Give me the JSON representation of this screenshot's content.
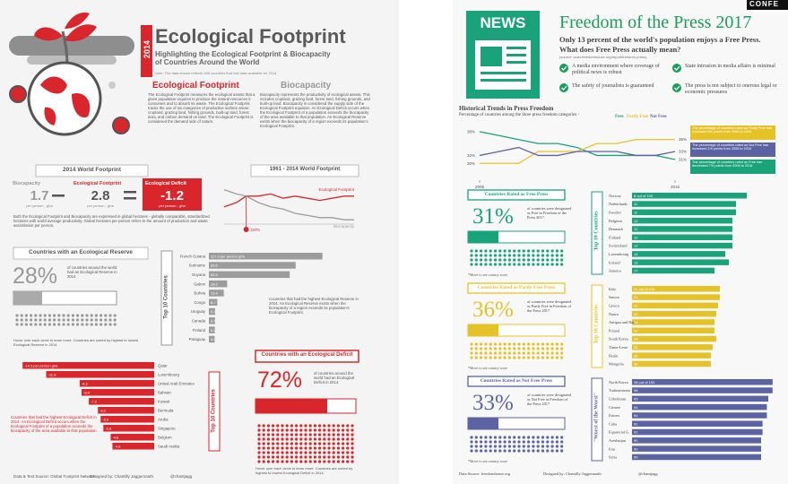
{
  "badge": "CONFE",
  "footprint": {
    "year": "2014",
    "title": "Ecological Footprint",
    "subtitle": "Highlighting the Ecological Footprint & Biocapacity of Countries Around the World",
    "note": "Note: The data shown reflects 188 countries that had data available for 2014.",
    "ef_heading": "Ecological Footprint",
    "ef_text": "The Ecological Footprint measures the ecological assets that a given population requires to produce the natural resources it consumes and to absorb its waste. The Ecological Footprint tracks the use of six categories of productive surface areas: cropland, grazing land, fishing grounds, built-up land, forest area, and carbon demand on land. The Ecological Footprint is considered the demand side of nature.",
    "bio_heading": "Biocapacity",
    "bio_text": "Biocapacity represents the productivity of ecological assets. This includes cropland, grazing land, forest land, fishing grounds, and built-up land. Biocapacity is considered the supply side of the Ecological Footprint equation. An Ecological Deficit occurs when the Ecological Footprint of a population exceeds the biocapacity of the area available to that population. An Ecological Reserve exists when the biocapacity of a region exceeds its population's Ecological Footprint.",
    "world_heading": "2014 World Footprint",
    "world": [
      {
        "label": "Biocapacity",
        "value": "1.7",
        "unit": "per person - gha"
      },
      {
        "label": "Ecological Footprint",
        "value": "2.8",
        "unit": "per person - gha"
      },
      {
        "label": "Ecological Deficit",
        "value": "-1.2",
        "unit": "per person - gha"
      }
    ],
    "world_text": "Both the Ecological Footprint and Biocapacity are expressed in global hectares - globally comparable, standardized hectares with world average productivity. Global hectares per person refers to the amount of production and waste assimilation per person.",
    "trend_heading": "1961 - 2014 World Footprint",
    "reserve_heading": "Countries with an Ecological Reserve",
    "reserve_pct": "28%",
    "reserve_text": "of countries around the world had an Ecological Reserve in 2014",
    "reserve_note": "Hover over each circle to learn more. Countries are sorted by highest to lowest Ecological Reserve in 2014.",
    "reserve_side": "Countries that had the highest Ecological Reserve in 2014. An Ecological Reserve exists when the biocapacity of a region exceeds its population's Ecological Footprint.",
    "top10": "Top 10 Countries",
    "deficit_heading": "Countries with an Ecological Deficit",
    "deficit_pct": "72%",
    "deficit_text": "of countries around the world had an Ecological Deficit in 2014",
    "deficit_note": "Hover over each circle to learn more. Countries are sorted by highest to lowest Ecological Deficit in 2014.",
    "deficit_side": "Countries that had the highest Ecological Deficit in 2014. An Ecological Deficit occurs when the Ecological Footprint of a population exceeds the biocapacity of the area available to that population.",
    "footer": [
      "Data & Text Source: Global Footprint Network",
      "Designed by: Chantilly Jaggernauth",
      "@chantjagg"
    ]
  },
  "press": {
    "icon": "NEWS",
    "title": "Freedom of the Press 2017",
    "subtitle": "Only 13 percent of the world's population enjoys a Free Press.",
    "question": "What does Free Press actually mean?",
    "source": "(source: www.freedomhouse.org/report/freedom-press)",
    "checks": [
      "A media environment where coverage of political news is robust",
      "State intrusion in media affairs is minimal",
      "The safety of journalists is guaranteed",
      "The press is not subject to onerous legal or economic pressures"
    ],
    "trend_title": "Historical Trends in Press Freedom",
    "trend_subtitle": "Percentage of countries among the three press freedom categories -",
    "trend_notes": [
      "The percentage of countries rated as Partly Free has increased 6% points from 2006 to 2016",
      "The percentage of countries rated as Not Free has increased 1% points from 2006 to 2016",
      "The percentage of countries rated as Free has decreased 7% points from 2006 to 2016"
    ],
    "sections": [
      {
        "heading": "Countries Rated as Free Press",
        "pct": "31%",
        "text": "of countries were designated as Free in Freedom of the Press 2017",
        "note": "*Move to see country score",
        "side": "Top 10 Countries"
      },
      {
        "heading": "Countries Rated as Partly Free Press",
        "pct": "36%",
        "text": "of countries were designated as Partly Free in Freedom of the Press 2017",
        "note": "*Move to see country score",
        "side": "Top 10 Countries"
      },
      {
        "heading": "Countries Rated as Not Free Press",
        "pct": "33%",
        "text": "of countries were designated as Not Free in Freedom of the Press 2017",
        "note": "*Move to see country score",
        "side": "\"Worst of the Worst\""
      }
    ],
    "footer": [
      "Data Source: freedomhouse.org",
      "Designed by: Chantilly Jaggernauth",
      "@chantjagg"
    ]
  },
  "chart_data": [
    {
      "type": "bar",
      "orientation": "horizontal",
      "color": "#9c9c9c",
      "categories": [
        "French Guiana",
        "Suriname",
        "Guyana",
        "Gabon",
        "Bolivia",
        "Congo",
        "Uruguay",
        "Canada",
        "Finland",
        "Paraguay"
      ],
      "values": [
        117.3,
        89.6,
        83.5,
        18.9,
        15.4,
        8.7,
        6.5,
        6.4,
        6.2,
        6.0
      ],
      "value_labels": [
        "117.3 per person gha",
        "89.6",
        "83.5",
        "18.9",
        "15.4",
        "8.7",
        "6.5",
        "6.4",
        "6.2",
        "6.0"
      ],
      "xlim": [
        0,
        125
      ]
    },
    {
      "type": "bar",
      "orientation": "horizontal",
      "color": "#d9262c",
      "categories": [
        "Qatar",
        "Luxembourg",
        "United Arab Emirates",
        "Bahrain",
        "Kuwait",
        "Bermuda",
        "Aruba",
        "Singapore",
        "Belgium",
        "Saudi Arabia"
      ],
      "values": [
        -14.5,
        -11.9,
        -8.2,
        -8.0,
        -7.2,
        -6.2,
        -5.9,
        -5.6,
        -4.8,
        -4.6
      ],
      "value_labels": [
        "-14.5 per person gha",
        "-11.9",
        "-8.2",
        "-8.0",
        "-7.2",
        "-6.2",
        "-5.9",
        "-5.6",
        "-4.8",
        "-4.6"
      ],
      "xlim": [
        -16,
        0
      ]
    },
    {
      "type": "line",
      "x": [
        1961,
        1966,
        1970,
        1975,
        1980,
        1985,
        1990,
        1995,
        2000,
        2005,
        2010,
        2014
      ],
      "series": [
        {
          "name": "Ecological Footprint",
          "color": "#d9262c",
          "values": [
            2.3,
            2.5,
            2.8,
            2.8,
            2.9,
            2.7,
            2.8,
            2.7,
            2.6,
            2.7,
            2.8,
            2.8
          ]
        },
        {
          "name": "Biocapacity",
          "color": "#9c9c9c",
          "values": [
            3.1,
            2.9,
            2.8,
            2.5,
            2.3,
            2.2,
            2.0,
            1.9,
            1.8,
            1.8,
            1.7,
            1.7
          ]
        }
      ],
      "annotation": "1970",
      "xlim": [
        1961,
        2014
      ],
      "ylim": [
        1.5,
        3.5
      ]
    },
    {
      "type": "line",
      "x": [
        2006,
        2007,
        2008,
        2009,
        2010,
        2011,
        2012,
        2013,
        2014,
        2015,
        2016
      ],
      "series": [
        {
          "name": "Free",
          "color": "#1aa37a",
          "values": [
            38,
            37,
            36,
            35,
            35,
            34,
            32,
            32,
            32,
            32,
            31
          ],
          "value_labels": [
            "38%",
            null,
            null,
            null,
            null,
            null,
            null,
            null,
            null,
            null,
            "31%"
          ]
        },
        {
          "name": "Partly Free",
          "color": "#e6c229",
          "values": [
            30,
            30,
            30,
            33,
            33,
            33,
            35,
            35,
            36,
            36,
            36
          ],
          "value_labels": [
            "30%",
            null,
            null,
            null,
            null,
            null,
            null,
            null,
            null,
            null,
            "36%"
          ]
        },
        {
          "name": "Not Free",
          "color": "#5b63a3",
          "values": [
            32,
            33,
            34,
            32,
            32,
            33,
            33,
            33,
            32,
            32,
            33
          ],
          "value_labels": [
            "32%",
            null,
            null,
            null,
            null,
            null,
            null,
            null,
            null,
            null,
            "33%"
          ]
        }
      ],
      "xticks": [
        2006,
        2016
      ],
      "xlim": [
        2006,
        2016
      ],
      "ylim": [
        26,
        40
      ]
    },
    {
      "type": "bar",
      "orientation": "horizontal",
      "color": "#1aa37a",
      "categories": [
        "Norway",
        "Netherlands",
        "Sweden",
        "Belgium",
        "Denmark",
        "Finland",
        "Switzerland",
        "Luxembourg",
        "Iceland",
        "Jamaica"
      ],
      "values": [
        8,
        11,
        11,
        12,
        12,
        12,
        12,
        14,
        13,
        17
      ],
      "value_labels": [
        "8 out of 100",
        "11",
        "11",
        "12",
        "12",
        "12",
        "12",
        "14",
        "13",
        "17"
      ],
      "xlim": [
        40,
        0
      ]
    },
    {
      "type": "bar",
      "orientation": "horizontal",
      "color": "#e6c229",
      "categories": [
        "Italy",
        "Samoa",
        "Greece",
        "Nauru",
        "Antigua and Bar.",
        "Poland",
        "South Korea",
        "Timor-Leste",
        "Benin",
        "Mongolia"
      ],
      "values": [
        31,
        31,
        32,
        33,
        34,
        34,
        33,
        35,
        36,
        36
      ],
      "value_labels": [
        "31 out of 100",
        "31",
        "32",
        "33",
        "34",
        "34",
        "33",
        "35",
        "36",
        "36"
      ],
      "xlim": [
        80,
        0
      ]
    },
    {
      "type": "bar",
      "orientation": "horizontal",
      "color": "#5b63a3",
      "categories": [
        "North Korea",
        "Turkmenistan",
        "Uzbekistan",
        "Crimea",
        "Eritrea",
        "Cuba",
        "Equatorial G.",
        "Azerbaijan",
        "Iran",
        "Syria"
      ],
      "values": [
        98,
        98,
        95,
        94,
        94,
        91,
        91,
        90,
        90,
        90
      ],
      "value_labels": [
        "98 out of 100",
        "98",
        "95",
        "94",
        "94",
        "91",
        "91",
        "90",
        "90",
        "90"
      ],
      "xlim": [
        0,
        100
      ]
    }
  ]
}
